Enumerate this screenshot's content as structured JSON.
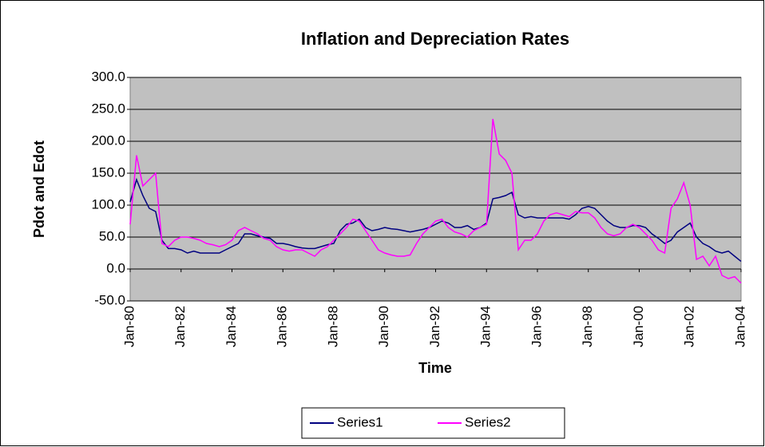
{
  "chart_data": {
    "type": "line",
    "title": "Inflation and Depreciation Rates",
    "x_label": "Time",
    "y_label": "Pdot and Edot",
    "categories": [
      "Jan-80",
      null,
      null,
      null,
      null,
      null,
      null,
      null,
      "Jan-82",
      null,
      null,
      null,
      null,
      null,
      null,
      null,
      "Jan-84",
      null,
      null,
      null,
      null,
      null,
      null,
      null,
      "Jan-86",
      null,
      null,
      null,
      null,
      null,
      null,
      null,
      "Jan-88",
      null,
      null,
      null,
      null,
      null,
      null,
      null,
      "Jan-90",
      null,
      null,
      null,
      null,
      null,
      null,
      null,
      "Jan-92",
      null,
      null,
      null,
      null,
      null,
      null,
      null,
      "Jan-94",
      null,
      null,
      null,
      null,
      null,
      null,
      null,
      "Jan-96",
      null,
      null,
      null,
      null,
      null,
      null,
      null,
      "Jan-98",
      null,
      null,
      null,
      null,
      null,
      null,
      null,
      "Jan-00",
      null,
      null,
      null,
      null,
      null,
      null,
      null,
      "Jan-02",
      null,
      null,
      null,
      null,
      null,
      null,
      null,
      "Jan-04"
    ],
    "series": [
      {
        "name": "Series1",
        "color": "#000080",
        "values": [
          105,
          140,
          115,
          95,
          90,
          45,
          32,
          32,
          30,
          25,
          28,
          25,
          25,
          25,
          25,
          30,
          35,
          40,
          55,
          55,
          52,
          50,
          48,
          40,
          40,
          38,
          35,
          33,
          32,
          32,
          35,
          38,
          40,
          60,
          70,
          72,
          78,
          65,
          60,
          62,
          65,
          63,
          62,
          60,
          58,
          60,
          62,
          65,
          70,
          75,
          72,
          65,
          65,
          68,
          62,
          65,
          72,
          110,
          112,
          115,
          120,
          85,
          80,
          82,
          80,
          80,
          80,
          80,
          80,
          78,
          85,
          95,
          98,
          95,
          85,
          75,
          68,
          65,
          65,
          68,
          68,
          65,
          55,
          48,
          40,
          45,
          58,
          65,
          72,
          50,
          40,
          35,
          28,
          25,
          28,
          20,
          12
        ]
      },
      {
        "name": "Series2",
        "color": "#ff00ff",
        "values": [
          70,
          178,
          130,
          140,
          150,
          40,
          35,
          45,
          50,
          50,
          48,
          45,
          40,
          38,
          35,
          38,
          45,
          60,
          65,
          60,
          55,
          48,
          45,
          35,
          30,
          28,
          30,
          30,
          25,
          20,
          30,
          35,
          45,
          55,
          65,
          78,
          75,
          60,
          45,
          30,
          25,
          22,
          20,
          20,
          22,
          40,
          55,
          65,
          75,
          78,
          65,
          58,
          55,
          50,
          60,
          65,
          70,
          235,
          180,
          170,
          150,
          30,
          45,
          45,
          55,
          75,
          85,
          88,
          85,
          82,
          90,
          88,
          88,
          80,
          65,
          55,
          52,
          55,
          65,
          70,
          65,
          55,
          45,
          30,
          25,
          95,
          110,
          135,
          100,
          15,
          20,
          5,
          20,
          -10,
          -15,
          -12,
          -22
        ]
      }
    ],
    "ylim": [
      -50,
      300
    ],
    "yticks": [
      {
        "value": -50,
        "label": "-50.0"
      },
      {
        "value": 0,
        "label": "0.0"
      },
      {
        "value": 50,
        "label": "50.0"
      },
      {
        "value": 100,
        "label": "100.0"
      },
      {
        "value": 150,
        "label": "150.0"
      },
      {
        "value": 200,
        "label": "200.0"
      },
      {
        "value": 250,
        "label": "250.0"
      },
      {
        "value": 300,
        "label": "300.0"
      }
    ],
    "grid": true,
    "plot_background": "#c0c0c0",
    "legend": "bottom"
  }
}
